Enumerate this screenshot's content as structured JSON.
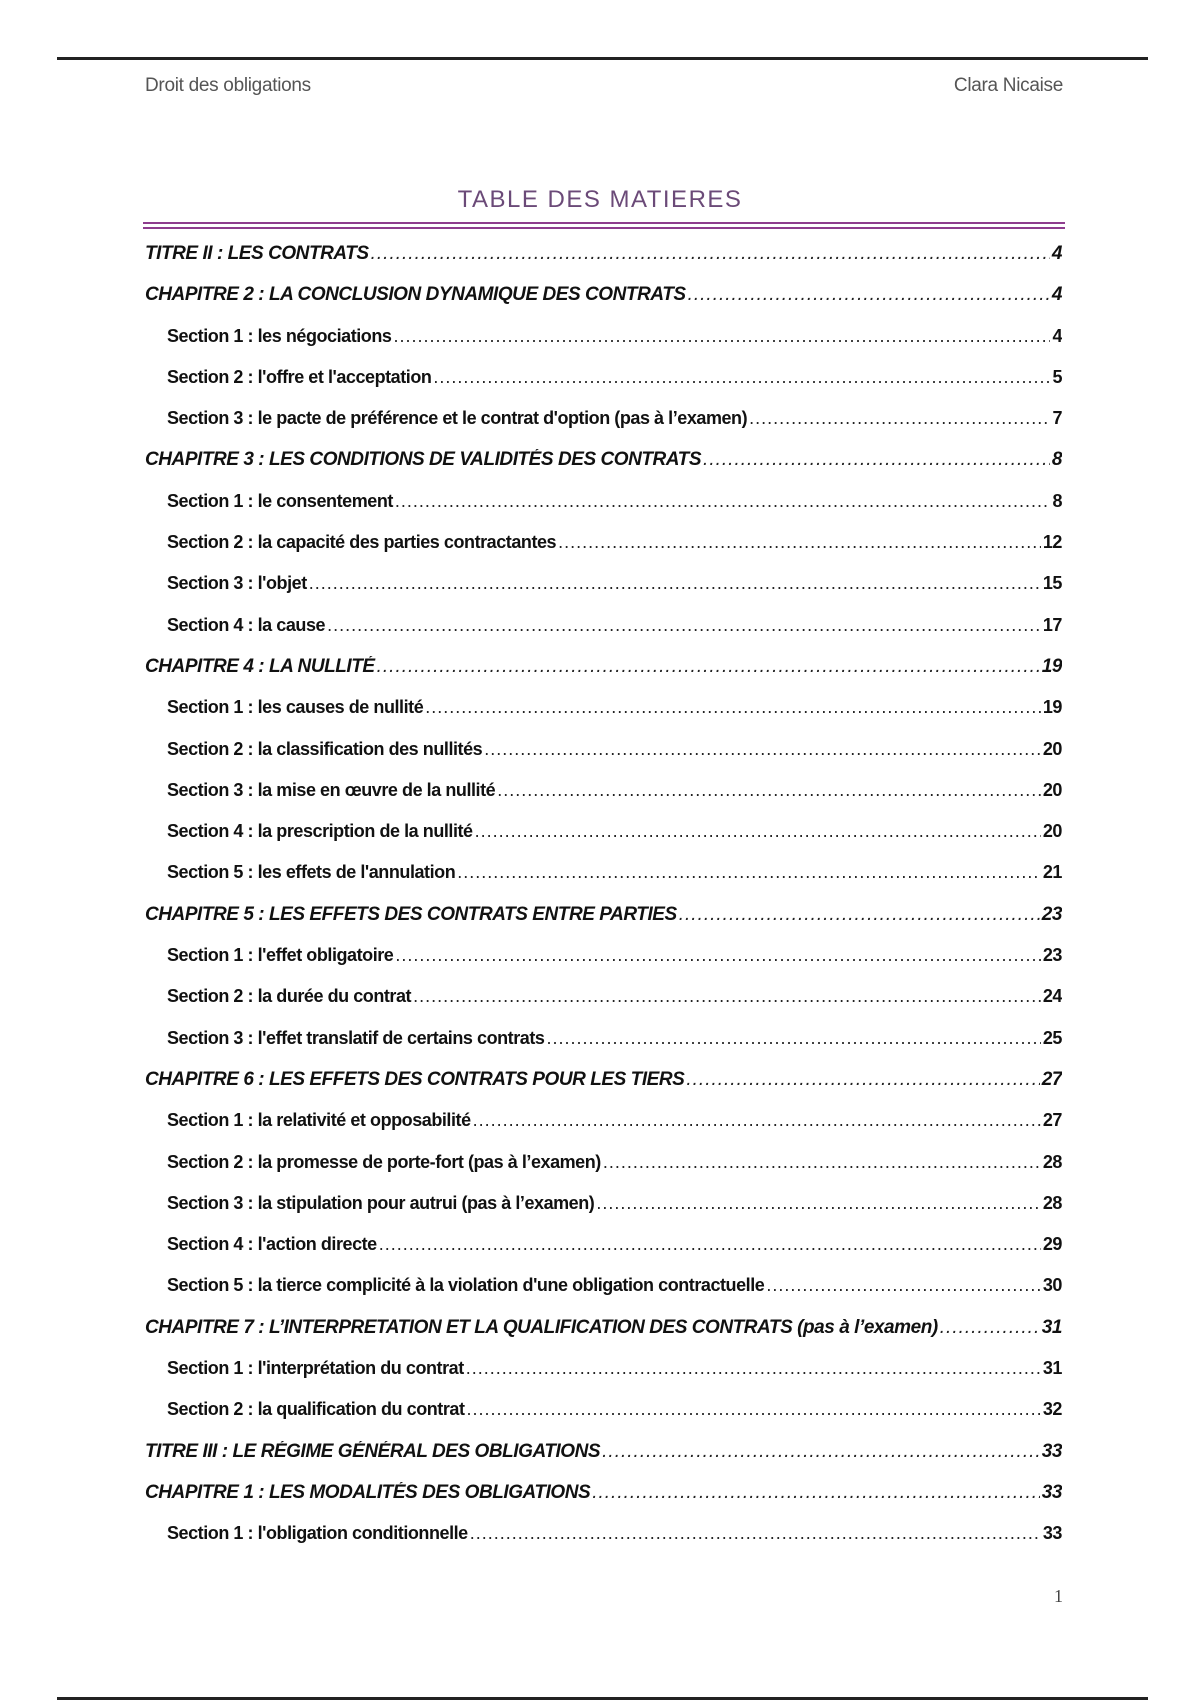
{
  "header": {
    "left": "Droit des obligations",
    "right": "Clara Nicaise"
  },
  "title": "TABLE DES MATIERES",
  "accent_color": "#8e3d8e",
  "entries": [
    {
      "level": "chap",
      "label": "TITRE II : LES CONTRATS",
      "page": "4"
    },
    {
      "level": "chap",
      "label": "CHAPITRE 2 : LA CONCLUSION DYNAMIQUE DES CONTRATS",
      "page": "4"
    },
    {
      "level": "sec",
      "label": "Section 1 : les négociations",
      "page": "4"
    },
    {
      "level": "sec",
      "label": "Section 2 : l'offre et l'acceptation",
      "page": "5"
    },
    {
      "level": "sec",
      "label": "Section 3 : le pacte de préférence et le contrat d'option (pas à l’examen)",
      "page": "7"
    },
    {
      "level": "chap",
      "label": "CHAPITRE 3 : LES CONDITIONS DE VALIDITÉS DES CONTRATS",
      "page": "8"
    },
    {
      "level": "sec",
      "label": "Section 1 : le consentement",
      "page": "8"
    },
    {
      "level": "sec",
      "label": "Section 2 : la capacité des parties contractantes",
      "page": "12"
    },
    {
      "level": "sec",
      "label": "Section 3 : l'objet",
      "page": "15"
    },
    {
      "level": "sec",
      "label": "Section 4 : la cause",
      "page": "17"
    },
    {
      "level": "chap",
      "label": "CHAPITRE 4 : LA NULLITÉ",
      "page": "19"
    },
    {
      "level": "sec",
      "label": "Section 1 : les causes de nullité",
      "page": "19"
    },
    {
      "level": "sec",
      "label": "Section 2 : la classification des nullités",
      "page": "20"
    },
    {
      "level": "sec",
      "label": "Section 3 : la mise en œuvre de la nullité",
      "page": "20"
    },
    {
      "level": "sec",
      "label": "Section 4 : la prescription de la nullité",
      "page": "20"
    },
    {
      "level": "sec",
      "label": "Section 5 : les effets de l'annulation",
      "page": "21"
    },
    {
      "level": "chap",
      "label": "CHAPITRE 5 : LES EFFETS DES CONTRATS ENTRE PARTIES",
      "page": "23"
    },
    {
      "level": "sec",
      "label": "Section 1 : l'effet obligatoire",
      "page": "23"
    },
    {
      "level": "sec",
      "label": "Section 2 : la durée du contrat",
      "page": "24"
    },
    {
      "level": "sec",
      "label": "Section 3 : l'effet translatif de certains contrats",
      "page": "25"
    },
    {
      "level": "chap",
      "label": "CHAPITRE 6 : LES EFFETS DES CONTRATS POUR LES TIERS",
      "page": "27"
    },
    {
      "level": "sec",
      "label": "Section 1 : la relativité et opposabilité",
      "page": "27"
    },
    {
      "level": "sec",
      "label": "Section 2 : la promesse de porte-fort (pas à l’examen)",
      "page": "28"
    },
    {
      "level": "sec",
      "label": "Section 3 : la stipulation pour autrui (pas à l’examen)",
      "page": "28"
    },
    {
      "level": "sec",
      "label": "Section 4 : l'action directe",
      "page": "29"
    },
    {
      "level": "sec",
      "label": "Section 5 : la tierce complicité à la violation d'une obligation contractuelle",
      "page": "30"
    },
    {
      "level": "chap",
      "label": "CHAPITRE 7 : L’INTERPRETATION ET LA QUALIFICATION DES CONTRATS (pas à l’examen)",
      "page": "31"
    },
    {
      "level": "sec",
      "label": "Section 1 : l'interprétation du contrat",
      "page": "31"
    },
    {
      "level": "sec",
      "label": "Section 2 : la qualification du contrat",
      "page": "32"
    },
    {
      "level": "chap",
      "label": "TITRE III : LE RÉGIME GÉNÉRAL DES OBLIGATIONS",
      "page": "33"
    },
    {
      "level": "chap",
      "label": "CHAPITRE 1 : LES MODALITÉS DES OBLIGATIONS",
      "page": "33"
    },
    {
      "level": "sec",
      "label": "Section 1 : l'obligation conditionnelle",
      "page": "33"
    }
  ],
  "footer": {
    "page_number": "1"
  }
}
